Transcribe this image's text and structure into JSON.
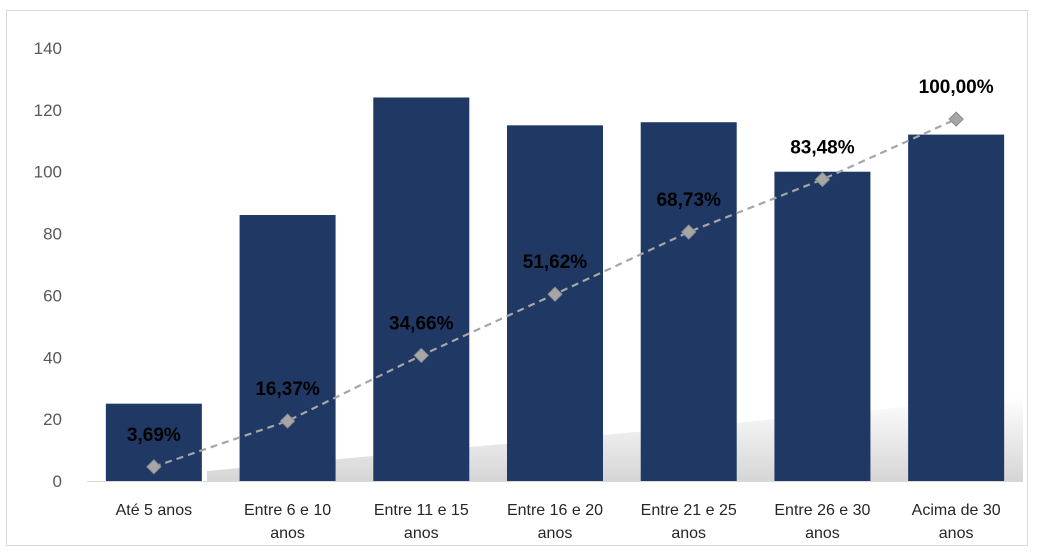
{
  "chart_data": {
    "type": "bar",
    "categories": [
      [
        "Até 5 anos"
      ],
      [
        "Entre 6 e 10",
        "anos"
      ],
      [
        "Entre 11 e 15",
        "anos"
      ],
      [
        "Entre 16 e 20",
        "anos"
      ],
      [
        "Entre 21 e 25",
        "anos"
      ],
      [
        "Entre 26 e 30",
        "anos"
      ],
      [
        "Acima de  30",
        "anos"
      ]
    ],
    "series": [
      {
        "type": "bar",
        "values": [
          25,
          86,
          124,
          115,
          116,
          100,
          112
        ],
        "color": "#1f3864"
      },
      {
        "type": "line",
        "values": [
          4.6,
          19.4,
          40.6,
          60.4,
          80.5,
          97.5,
          117.0
        ],
        "color": "#a6a6a6",
        "line_style": "dashed",
        "marker": "diamond"
      }
    ],
    "data_labels": [
      "3,69%",
      "16,37%",
      "34,66%",
      "51,62%",
      "68,73%",
      "83,48%",
      "100,00%"
    ],
    "ylim": [
      0,
      140
    ],
    "yticks": [
      0,
      20,
      40,
      60,
      80,
      100,
      120,
      140
    ],
    "grid": false,
    "legend": "none"
  }
}
